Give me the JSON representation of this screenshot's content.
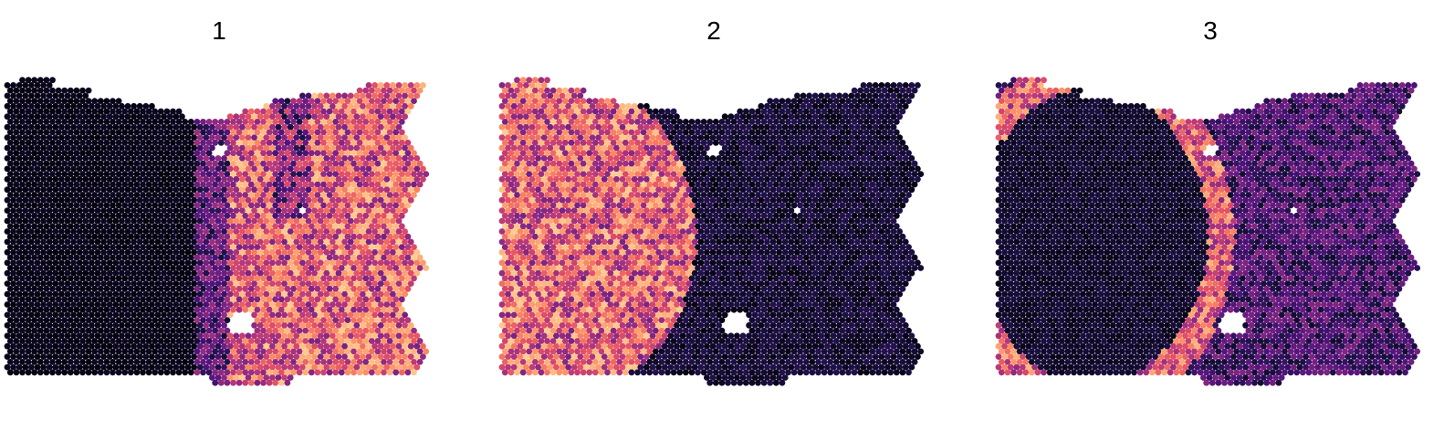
{
  "panels": [
    {
      "title": "1",
      "pattern": "right-region-high"
    },
    {
      "title": "2",
      "pattern": "left-disc-high"
    },
    {
      "title": "3",
      "pattern": "ring-and-scattered"
    }
  ],
  "colors": {
    "background": "#ffffff",
    "scale": [
      "#000004",
      "#1c1044",
      "#4f127b",
      "#812581",
      "#b5367a",
      "#e55064",
      "#fb8761",
      "#fec287",
      "#fcfdbf"
    ]
  }
}
